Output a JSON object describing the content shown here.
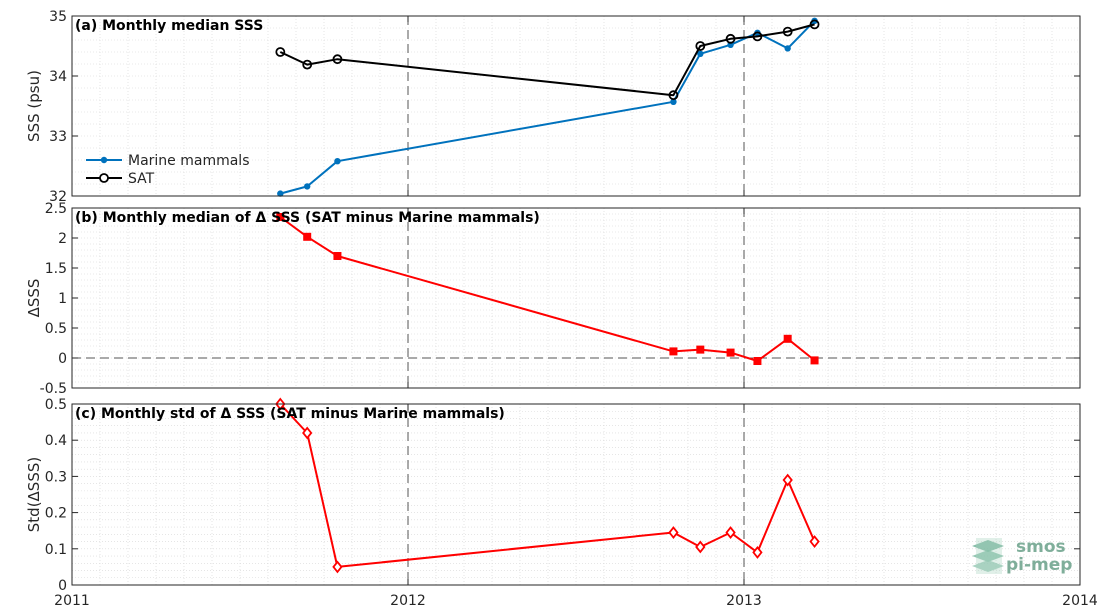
{
  "chart_data": [
    {
      "type": "line",
      "title": "(a) Monthly median SSS",
      "ylabel": "SSS (psu)",
      "xlim": [
        2011,
        2014
      ],
      "ylim": [
        32,
        35
      ],
      "yticks": [
        32,
        33,
        34,
        35
      ],
      "grid": true,
      "legend_position": "lower-left",
      "vlines": [
        2012,
        2013
      ],
      "series": [
        {
          "name": "Marine mammals",
          "color": "#0072bd",
          "marker": "dot",
          "x": [
            2011.62,
            2011.7,
            2011.79,
            2012.79,
            2012.87,
            2012.96,
            2013.04,
            2013.13,
            2013.21
          ],
          "y": [
            32.04,
            32.16,
            32.58,
            33.57,
            34.37,
            34.52,
            34.72,
            34.46,
            34.92
          ]
        },
        {
          "name": "SAT",
          "color": "#000000",
          "marker": "circle",
          "x": [
            2011.62,
            2011.7,
            2011.79,
            2012.79,
            2012.87,
            2012.96,
            2013.04,
            2013.13,
            2013.21
          ],
          "y": [
            34.4,
            34.19,
            34.28,
            33.68,
            34.5,
            34.62,
            34.66,
            34.74,
            34.86
          ]
        }
      ]
    },
    {
      "type": "line",
      "title": "(b) Monthly median of Δ SSS (SAT minus Marine mammals)",
      "ylabel": "ΔSSS",
      "xlim": [
        2011,
        2014
      ],
      "ylim": [
        -0.5,
        2.5
      ],
      "yticks": [
        -0.5,
        0,
        0.5,
        1,
        1.5,
        2,
        2.5
      ],
      "grid": true,
      "hline": 0,
      "vlines": [
        2012,
        2013
      ],
      "series": [
        {
          "color": "#ff0000",
          "marker": "square",
          "x": [
            2011.62,
            2011.7,
            2011.79,
            2012.79,
            2012.87,
            2012.96,
            2013.04,
            2013.13,
            2013.21
          ],
          "y": [
            2.35,
            2.02,
            1.7,
            0.11,
            0.14,
            0.09,
            -0.05,
            0.32,
            -0.04
          ]
        }
      ]
    },
    {
      "type": "line",
      "title": "(c) Monthly std of Δ SSS (SAT minus Marine mammals)",
      "ylabel": "Std(ΔSSS)",
      "xlim": [
        2011,
        2014
      ],
      "ylim": [
        0,
        0.5
      ],
      "yticks": [
        0,
        0.1,
        0.2,
        0.3,
        0.4,
        0.5
      ],
      "xticks": [
        2011,
        2012,
        2013,
        2014
      ],
      "grid": true,
      "vlines": [
        2012,
        2013
      ],
      "series": [
        {
          "color": "#ff0000",
          "marker": "diamond",
          "x": [
            2011.62,
            2011.7,
            2011.79,
            2012.79,
            2012.87,
            2012.96,
            2013.04,
            2013.13,
            2013.21
          ],
          "y": [
            0.5,
            0.42,
            0.05,
            0.145,
            0.105,
            0.145,
            0.09,
            0.29,
            0.12
          ]
        }
      ]
    }
  ],
  "logo": {
    "line1": "smos",
    "line2": "pi-mep"
  }
}
